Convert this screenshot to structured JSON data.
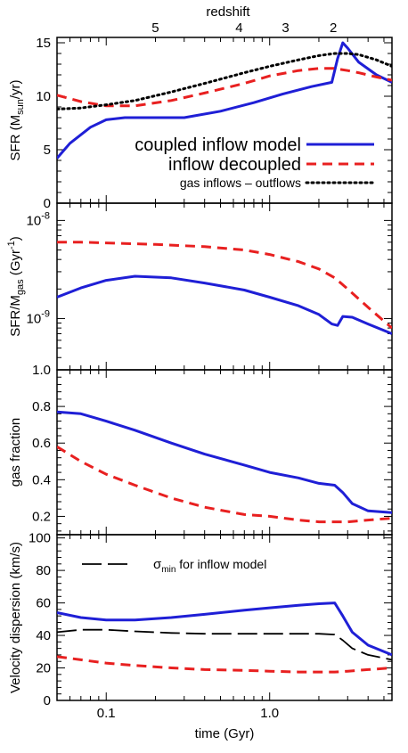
{
  "chart_data": {
    "type": "line",
    "x_axis": {
      "label": "time (Gyr)",
      "scale": "log",
      "range": [
        0.05,
        5.6
      ],
      "tick_labels": [
        {
          "value": 0.1,
          "label": "0.1"
        },
        {
          "value": 1.0,
          "label": "1.0"
        }
      ]
    },
    "top_axis": {
      "label": "redshift",
      "ticks": [
        {
          "label": "5",
          "time": 0.2
        },
        {
          "label": "4",
          "time": 0.65
        },
        {
          "label": "3",
          "time": 1.25
        },
        {
          "label": "2",
          "time": 2.45
        }
      ]
    },
    "panels": [
      {
        "id": "sfr",
        "ylabel_main": "SFR (M",
        "ylabel_sub": "sun",
        "ylabel_tail": "/yr)",
        "ylim": [
          0,
          15.5
        ],
        "scale": "linear",
        "yticks": [
          {
            "value": 0,
            "label": "0"
          },
          {
            "value": 5,
            "label": "5"
          },
          {
            "value": 10,
            "label": "10"
          },
          {
            "value": 15,
            "label": "15"
          }
        ],
        "series": [
          {
            "key": "coupled",
            "color": "#1f1fd6",
            "dash": "",
            "x": [
              0.05,
              0.06,
              0.08,
              0.1,
              0.13,
              0.2,
              0.3,
              0.5,
              0.8,
              1.2,
              1.8,
              2.4,
              2.6,
              2.8,
              3.0,
              3.5,
              4.5,
              5.6
            ],
            "y": [
              4.2,
              5.6,
              7.1,
              7.8,
              8.0,
              8.0,
              8.0,
              8.6,
              9.4,
              10.2,
              10.9,
              11.3,
              13.5,
              15.0,
              14.5,
              13.2,
              12.0,
              11.3
            ]
          },
          {
            "key": "decoupled",
            "color": "#e82020",
            "dash": "11 7",
            "x": [
              0.05,
              0.07,
              0.1,
              0.15,
              0.25,
              0.4,
              0.7,
              1.0,
              1.5,
              2.0,
              2.5,
              3.0,
              3.5,
              4.5,
              5.6
            ],
            "y": [
              10.1,
              9.5,
              9.1,
              9.1,
              9.6,
              10.3,
              11.2,
              11.9,
              12.4,
              12.6,
              12.6,
              12.4,
              12.2,
              11.8,
              11.5
            ]
          },
          {
            "key": "net_inflow",
            "color": "#000000",
            "dash": "2 4",
            "x": [
              0.05,
              0.07,
              0.1,
              0.15,
              0.25,
              0.4,
              0.7,
              1.0,
              1.5,
              2.0,
              2.5,
              3.0,
              3.5,
              4.5,
              5.6
            ],
            "y": [
              8.8,
              8.9,
              9.2,
              9.6,
              10.4,
              11.2,
              12.2,
              12.8,
              13.4,
              13.8,
              14.0,
              14.0,
              13.9,
              13.4,
              12.8
            ]
          }
        ],
        "legend": [
          {
            "key": "coupled",
            "label": "coupled inflow model",
            "size": "big"
          },
          {
            "key": "decoupled",
            "label": "inflow decoupled",
            "size": "big"
          },
          {
            "key": "net_inflow",
            "label": "gas inflows – outflows",
            "size": "small"
          }
        ]
      },
      {
        "id": "ssfr",
        "ylabel_main": "SFR/M",
        "ylabel_sub": "gas",
        "ylabel_tail": " (Gyr",
        "ylabel_sup": "-1",
        "ylabel_end": ")",
        "ylim": [
          3e-10,
          1.5e-08
        ],
        "scale": "log",
        "yticks": [
          {
            "value": 1e-09,
            "base": "10",
            "exp": "-9"
          },
          {
            "value": 1e-08,
            "base": "10",
            "exp": "-8"
          }
        ],
        "series": [
          {
            "key": "coupled",
            "color": "#1f1fd6",
            "dash": "",
            "x": [
              0.05,
              0.07,
              0.1,
              0.15,
              0.25,
              0.4,
              0.7,
              1.0,
              1.5,
              2.0,
              2.4,
              2.6,
              2.8,
              3.2,
              4.0,
              5.6
            ],
            "y": [
              1.65e-09,
              2.05e-09,
              2.45e-09,
              2.7e-09,
              2.6e-09,
              2.3e-09,
              1.95e-09,
              1.65e-09,
              1.35e-09,
              1.1e-09,
              8.8e-10,
              8.5e-10,
              1.05e-09,
              1.03e-09,
              8.8e-10,
              7e-10
            ]
          },
          {
            "key": "decoupled",
            "color": "#e82020",
            "dash": "11 7",
            "x": [
              0.05,
              0.07,
              0.1,
              0.2,
              0.4,
              0.7,
              1.0,
              1.5,
              2.0,
              2.5,
              3.0,
              4.0,
              5.6
            ],
            "y": [
              6e-09,
              6e-09,
              5.9e-09,
              5.7e-09,
              5.4e-09,
              5e-09,
              4.5e-09,
              3.8e-09,
              3.2e-09,
              2.6e-09,
              2e-09,
              1.3e-09,
              8e-10
            ]
          }
        ]
      },
      {
        "id": "gas_fraction",
        "ylabel_main": "gas fraction",
        "ylim": [
          0.1,
          1.0
        ],
        "scale": "linear",
        "yticks": [
          {
            "value": 0.2,
            "label": "0.2"
          },
          {
            "value": 0.4,
            "label": "0.4"
          },
          {
            "value": 0.6,
            "label": "0.6"
          },
          {
            "value": 0.8,
            "label": "0.8"
          },
          {
            "value": 1.0,
            "label": "1.0"
          }
        ],
        "series": [
          {
            "key": "coupled",
            "color": "#1f1fd6",
            "dash": "",
            "x": [
              0.05,
              0.07,
              0.1,
              0.15,
              0.25,
              0.4,
              0.7,
              1.0,
              1.5,
              2.0,
              2.5,
              2.8,
              3.2,
              4.0,
              5.6
            ],
            "y": [
              0.77,
              0.76,
              0.72,
              0.67,
              0.6,
              0.54,
              0.48,
              0.44,
              0.41,
              0.38,
              0.37,
              0.33,
              0.27,
              0.23,
              0.22
            ]
          },
          {
            "key": "decoupled",
            "color": "#e82020",
            "dash": "11 7",
            "x": [
              0.05,
              0.07,
              0.1,
              0.15,
              0.25,
              0.4,
              0.7,
              1.0,
              1.5,
              2.0,
              2.5,
              3.0,
              4.0,
              5.6
            ],
            "y": [
              0.58,
              0.5,
              0.43,
              0.37,
              0.3,
              0.25,
              0.21,
              0.2,
              0.18,
              0.17,
              0.17,
              0.17,
              0.18,
              0.19
            ]
          }
        ]
      },
      {
        "id": "velocity_dispersion",
        "ylabel_main": "Velocity dispersion (km/s)",
        "ylim": [
          0,
          102
        ],
        "scale": "linear",
        "yticks": [
          {
            "value": 0,
            "label": "0"
          },
          {
            "value": 20,
            "label": "20"
          },
          {
            "value": 40,
            "label": "40"
          },
          {
            "value": 60,
            "label": "60"
          },
          {
            "value": 80,
            "label": "80"
          },
          {
            "value": 100,
            "label": "100"
          }
        ],
        "series": [
          {
            "key": "coupled",
            "color": "#1f1fd6",
            "dash": "",
            "x": [
              0.05,
              0.07,
              0.1,
              0.15,
              0.25,
              0.4,
              0.7,
              1.0,
              1.5,
              2.0,
              2.5,
              2.8,
              3.2,
              4.0,
              5.6
            ],
            "y": [
              54,
              51,
              49.5,
              49.5,
              51,
              53,
              55.5,
              57,
              58.5,
              59.5,
              60,
              52,
              42,
              34,
              28
            ]
          },
          {
            "key": "decoupled",
            "color": "#e82020",
            "dash": "11 7",
            "x": [
              0.05,
              0.07,
              0.1,
              0.15,
              0.25,
              0.4,
              0.7,
              1.0,
              1.5,
              2.0,
              2.5,
              3.0,
              4.0,
              5.6
            ],
            "y": [
              27,
              25,
              23,
              21.5,
              20,
              19,
              18.5,
              18,
              17.5,
              17.5,
              17.5,
              18,
              19,
              20
            ]
          },
          {
            "key": "sigma_min",
            "color": "#000000",
            "dash": "22 7",
            "x": [
              0.05,
              0.07,
              0.1,
              0.15,
              0.25,
              0.4,
              0.7,
              1.0,
              1.5,
              2.0,
              2.5,
              2.8,
              3.2,
              4.0,
              5.6
            ],
            "y": [
              42,
              43.5,
              43.5,
              42.5,
              41.5,
              41,
              41,
              41,
              41,
              41,
              40.5,
              37,
              32,
              28,
              25
            ]
          }
        ],
        "legend": [
          {
            "key": "sigma_min",
            "symbol": "σ",
            "sub": "min",
            "label": " for inflow model"
          }
        ]
      }
    ]
  }
}
